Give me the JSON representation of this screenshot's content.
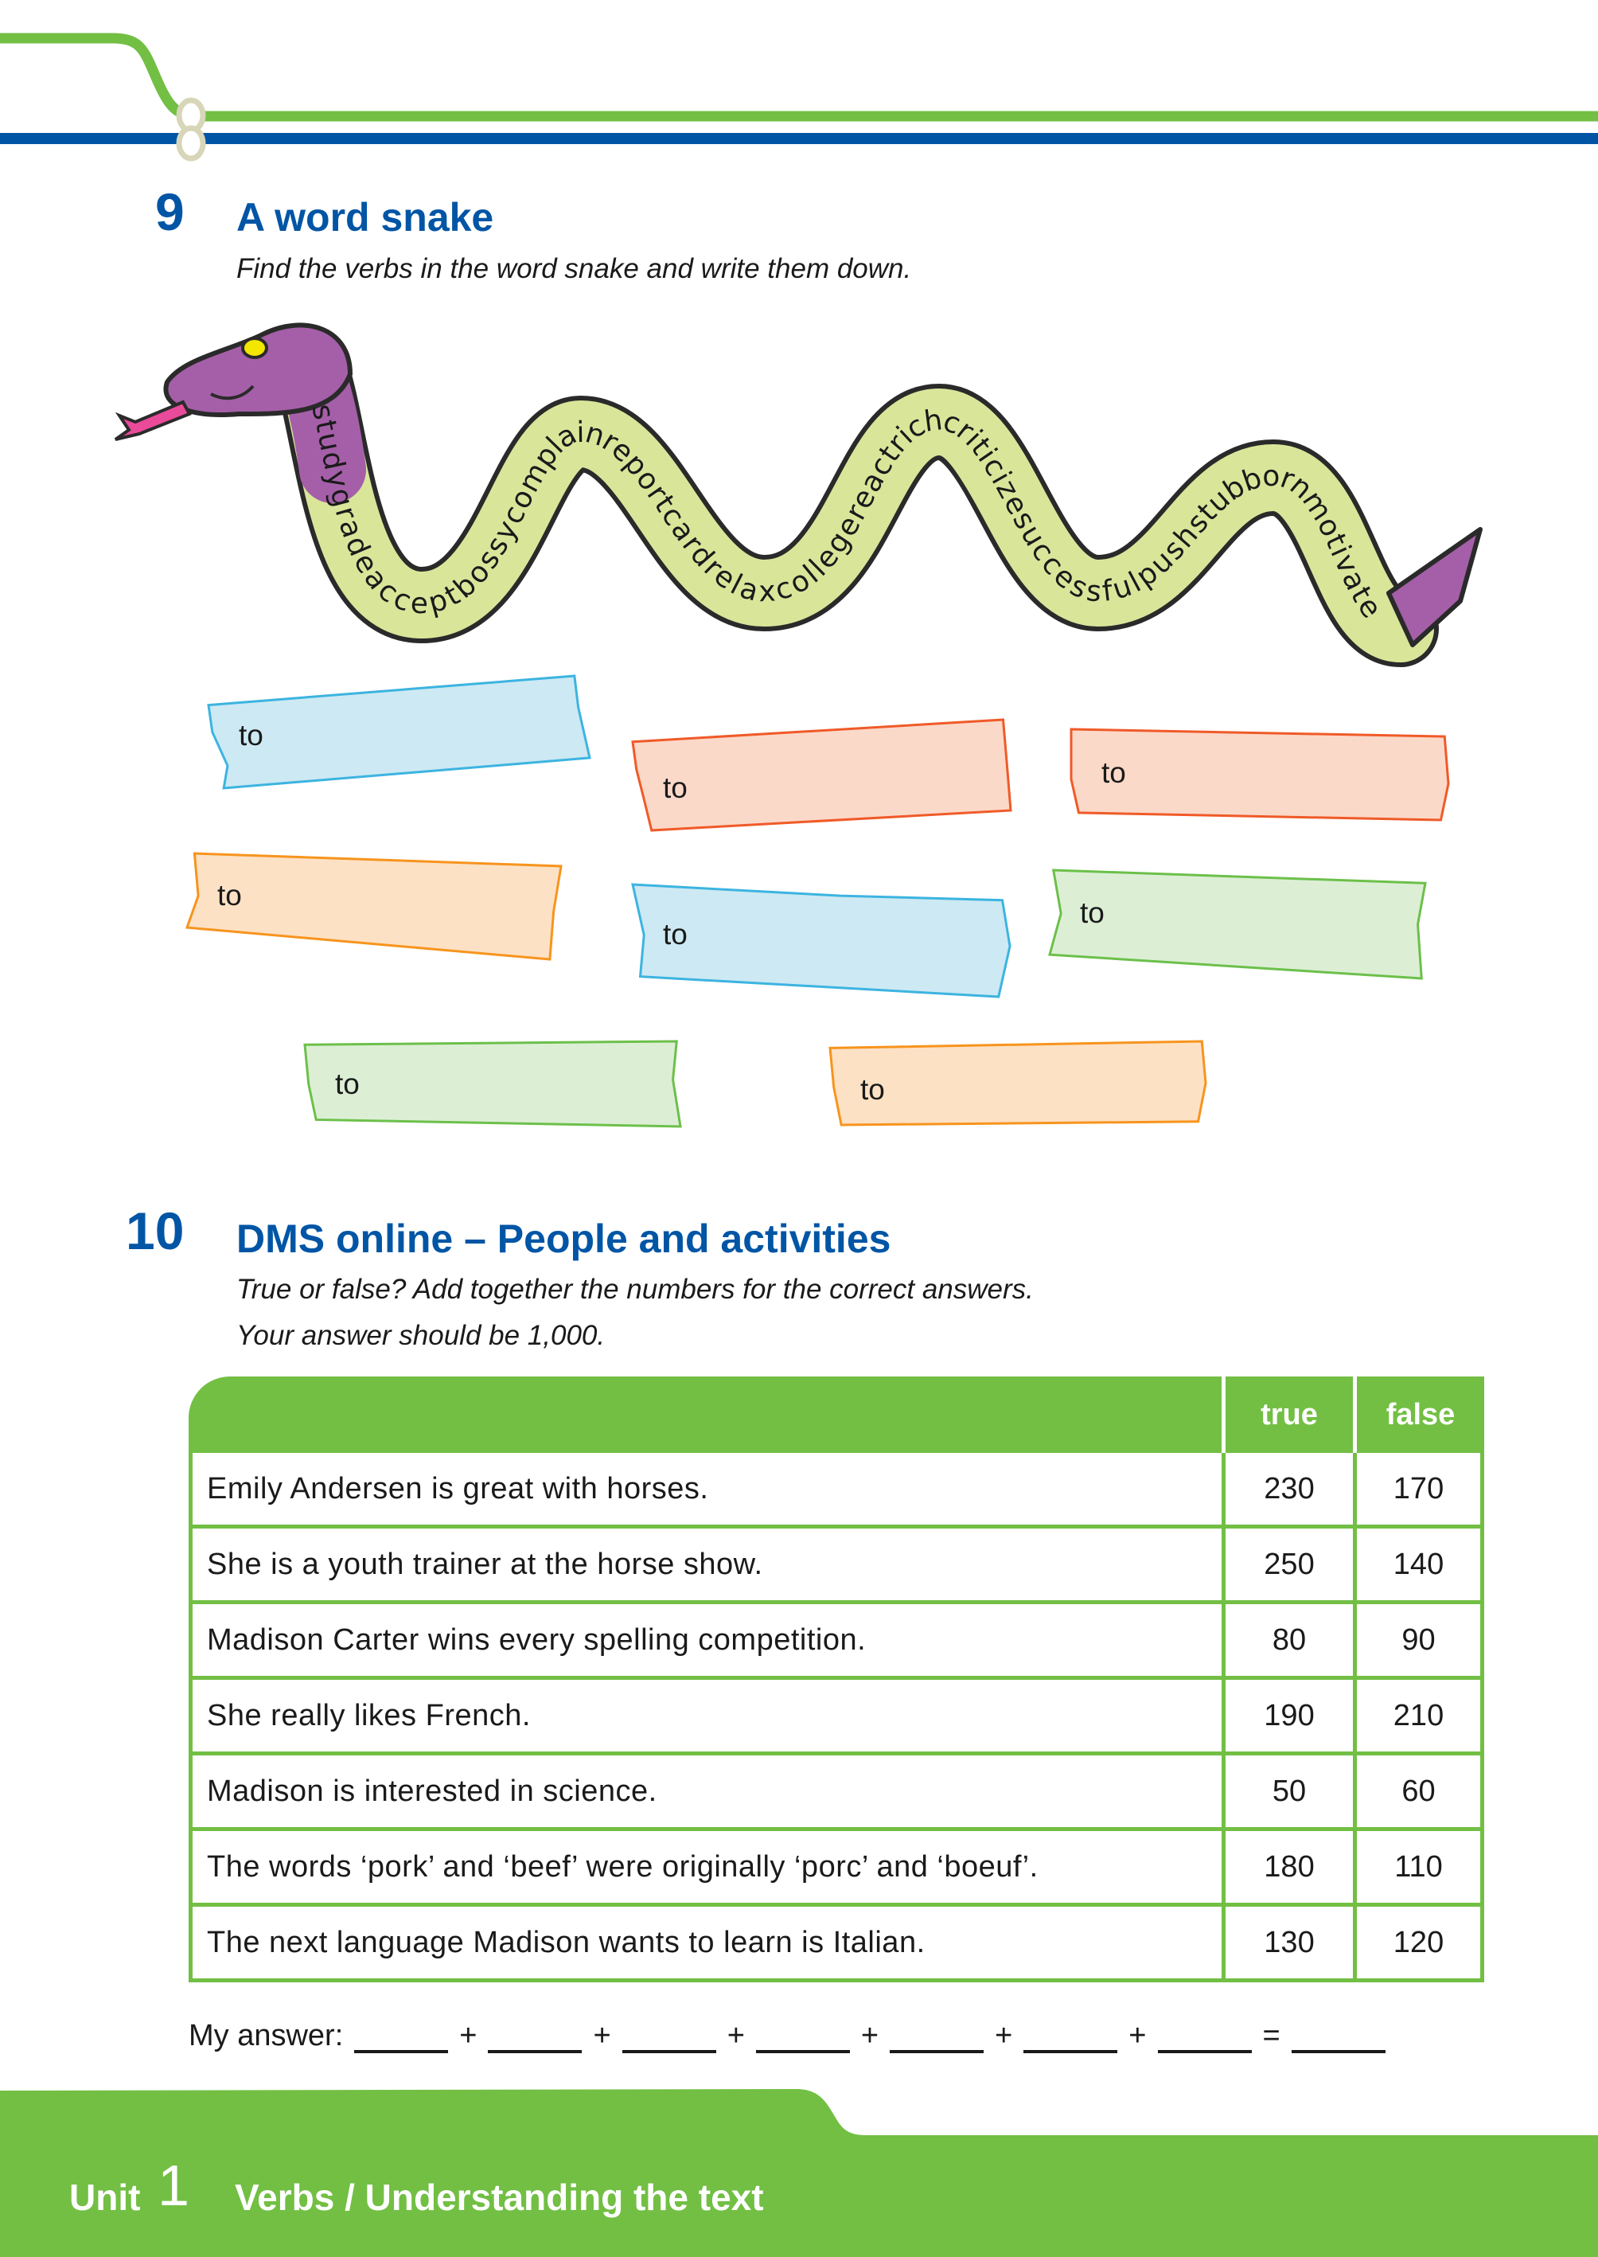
{
  "colors": {
    "brand_blue": "#0055a5",
    "brand_green": "#72bf44",
    "snake_body": "#d9e69a",
    "snake_head": "#a55fa8"
  },
  "section9": {
    "number": "9",
    "title": "A word snake",
    "instruction": "Find the verbs in the word snake and write them down.",
    "snake_text": "studygradeacceptbossycomplainreportcardrelaxcollegereactrichcriticizesuccessfulpushstubbornmotivate",
    "tapes": [
      {
        "label": "to",
        "color": "blue"
      },
      {
        "label": "to",
        "color": "red-orange"
      },
      {
        "label": "to",
        "color": "red-orange"
      },
      {
        "label": "to",
        "color": "orange"
      },
      {
        "label": "to",
        "color": "blue"
      },
      {
        "label": "to",
        "color": "green"
      },
      {
        "label": "to",
        "color": "green"
      },
      {
        "label": "to",
        "color": "orange"
      }
    ]
  },
  "section10": {
    "number": "10",
    "title": "DMS online – People and activities",
    "instructions": [
      "True or false? Add together the numbers for the correct answers.",
      "Your answer should be 1,000."
    ],
    "table": {
      "headers": [
        "",
        "true",
        "false"
      ],
      "rows": [
        {
          "statement": "Emily Andersen is great with horses.",
          "true": "230",
          "false": "170"
        },
        {
          "statement": "She is a youth trainer at the horse show.",
          "true": "250",
          "false": "140"
        },
        {
          "statement": "Madison Carter wins every spelling competition.",
          "true": "80",
          "false": "90"
        },
        {
          "statement": "She really likes French.",
          "true": "190",
          "false": "210"
        },
        {
          "statement": "Madison is interested in science.",
          "true": "50",
          "false": "60"
        },
        {
          "statement": "The words ‘pork’ and ‘beef’ were originally ‘porc’ and ‘boeuf’.",
          "true": "180",
          "false": "110"
        },
        {
          "statement": "The next language Madison wants to learn is Italian.",
          "true": "130",
          "false": "120"
        }
      ]
    },
    "answer": {
      "label": "My answer:",
      "plus": "+",
      "equals": "="
    }
  },
  "footer": {
    "unit_label": "Unit",
    "unit_number": "1",
    "topic": "Verbs / Understanding the text"
  }
}
